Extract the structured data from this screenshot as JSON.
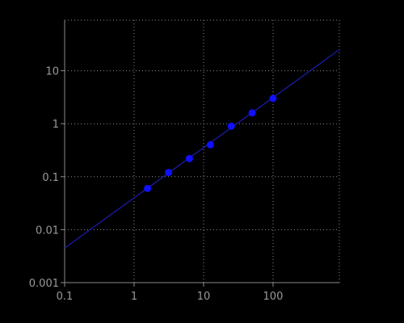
{
  "chart_data": {
    "type": "scatter",
    "title": "",
    "xlabel": "",
    "ylabel": "",
    "x_scale": "log",
    "y_scale": "log",
    "xlim": [
      0.1,
      900
    ],
    "ylim": [
      0.001,
      90
    ],
    "grid": true,
    "x_ticks": [
      {
        "value": 0.1,
        "label": "0.1"
      },
      {
        "value": 1,
        "label": "1"
      },
      {
        "value": 10,
        "label": "10"
      },
      {
        "value": 100,
        "label": "100"
      }
    ],
    "y_ticks": [
      {
        "value": 0.001,
        "label": "0.001"
      },
      {
        "value": 0.01,
        "label": "0.01"
      },
      {
        "value": 0.1,
        "label": "0.1"
      },
      {
        "value": 1,
        "label": "1"
      },
      {
        "value": 10,
        "label": "10"
      }
    ],
    "series": [
      {
        "kind": "points",
        "x": [
          1.56,
          3.13,
          6.25,
          12.5,
          25,
          50,
          100
        ],
        "y": [
          0.06,
          0.12,
          0.22,
          0.4,
          0.9,
          1.6,
          3.0
        ]
      },
      {
        "kind": "fit-line",
        "x": [
          0.1,
          900
        ],
        "y": [
          0.0045,
          25
        ]
      }
    ],
    "colors": {
      "background": "#000000",
      "axis": "#8a8a8a",
      "grid": "#8a8a8a",
      "tick_text": "#9a9a9a",
      "points": "#1010ff",
      "line": "#1a1aa8"
    }
  }
}
